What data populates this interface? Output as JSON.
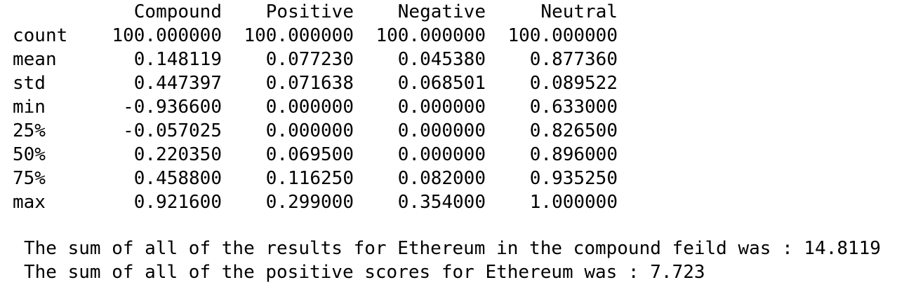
{
  "table": {
    "columns": [
      "Compound",
      "Positive",
      "Negative",
      "Neutral"
    ],
    "rows": [
      {
        "label": "count",
        "values": [
          "100.000000",
          "100.000000",
          "100.000000",
          "100.000000"
        ]
      },
      {
        "label": "mean",
        "values": [
          "0.148119",
          "0.077230",
          "0.045380",
          "0.877360"
        ]
      },
      {
        "label": "std",
        "values": [
          "0.447397",
          "0.071638",
          "0.068501",
          "0.089522"
        ]
      },
      {
        "label": "min",
        "values": [
          "-0.936600",
          "0.000000",
          "0.000000",
          "0.633000"
        ]
      },
      {
        "label": "25%",
        "values": [
          "-0.057025",
          "0.000000",
          "0.000000",
          "0.826500"
        ]
      },
      {
        "label": "50%",
        "values": [
          "0.220350",
          "0.069500",
          "0.000000",
          "0.896000"
        ]
      },
      {
        "label": "75%",
        "values": [
          "0.458800",
          "0.116250",
          "0.082000",
          "0.935250"
        ]
      },
      {
        "label": "max",
        "values": [
          "0.921600",
          "0.299000",
          "0.354000",
          "1.000000"
        ]
      }
    ]
  },
  "printed_lines": [
    "The sum of all of the results for Ethereum in the compound feild was : 14.8119",
    "The sum of all of the positive scores for Ethereum was : 7.723"
  ]
}
